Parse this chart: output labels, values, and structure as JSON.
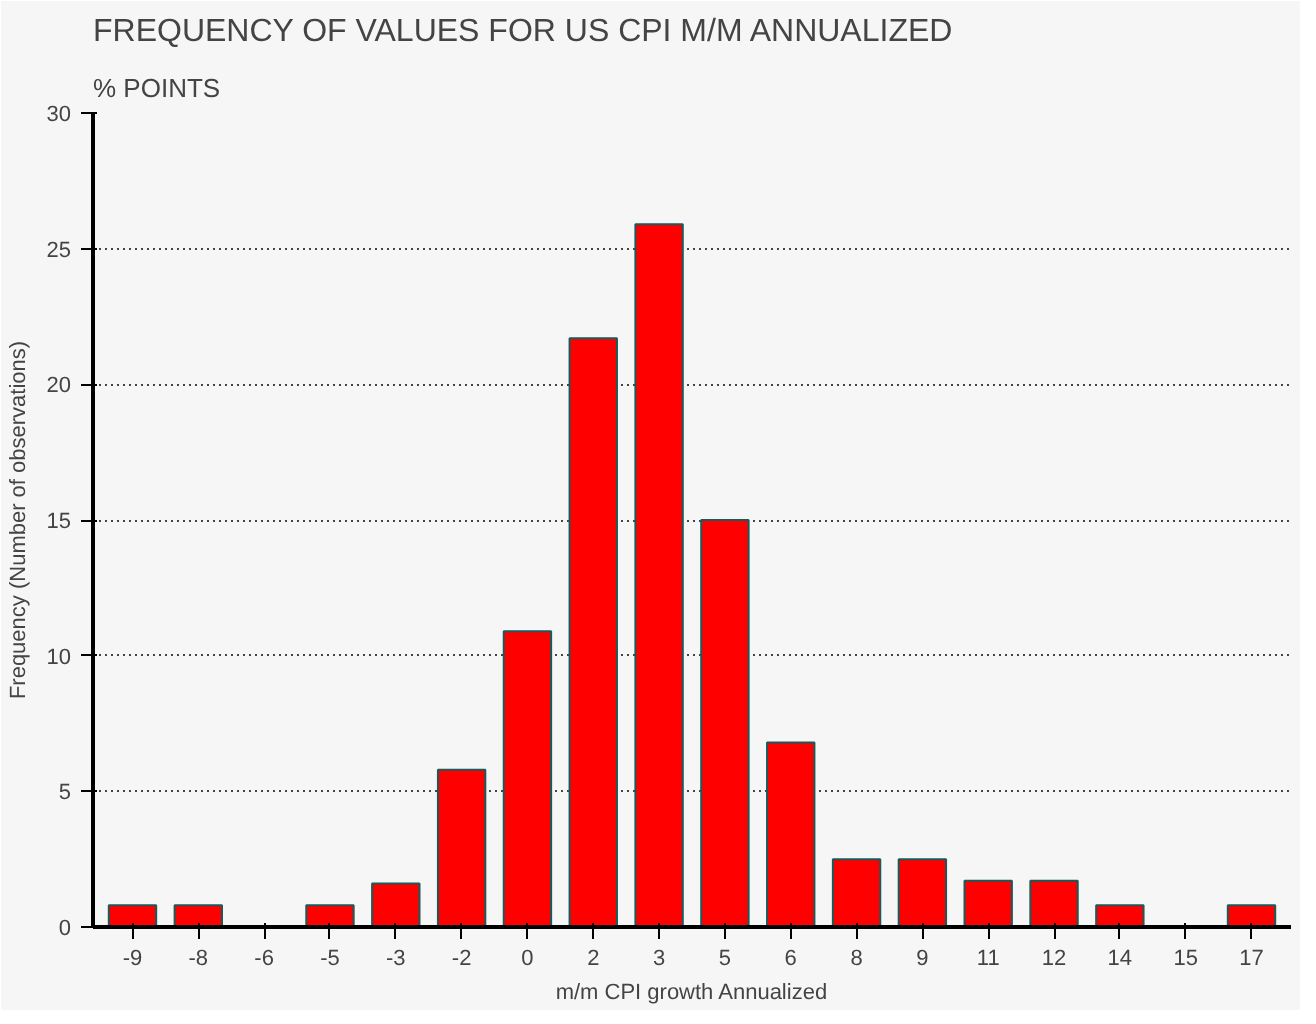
{
  "chart_data": {
    "type": "bar",
    "title": "FREQUENCY OF VALUES FOR US CPI M/M ANNUALIZED",
    "subtitle": "% POINTS",
    "xlabel": "m/m CPI growth Annualized",
    "ylabel": "Frequency (Number of observations)",
    "categories": [
      "-9",
      "-8",
      "-6",
      "-5",
      "-3",
      "-2",
      "0",
      "2",
      "3",
      "5",
      "6",
      "8",
      "9",
      "11",
      "12",
      "14",
      "15",
      "17"
    ],
    "values": [
      0.8,
      0.8,
      0,
      0.8,
      1.6,
      5.8,
      10.9,
      21.7,
      25.9,
      15,
      6.8,
      2.5,
      2.5,
      1.7,
      1.7,
      0.8,
      0,
      0.8
    ],
    "color": "#ff0000",
    "ylim": [
      0,
      30
    ],
    "yticks": [
      0,
      5,
      10,
      15,
      20,
      25,
      30
    ],
    "grid": "y"
  }
}
